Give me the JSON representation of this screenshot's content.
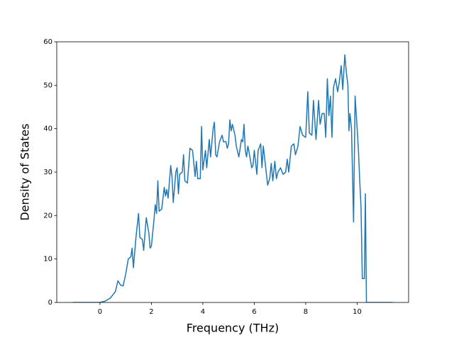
{
  "chart_data": {
    "type": "line",
    "x_label": "Frequency (THz)",
    "y_label": "Density of States",
    "xlim": [
      -1.68,
      12.0
    ],
    "ylim": [
      0,
      60
    ],
    "xticks": [
      0,
      2,
      4,
      6,
      8,
      10
    ],
    "yticks": [
      0,
      10,
      20,
      30,
      40,
      50,
      60
    ],
    "grid": false,
    "series": [
      {
        "color": "#1f77b4",
        "x": [
          -1.05,
          -0.5,
          0,
          0.2,
          0.4,
          0.6,
          0.7,
          0.8,
          0.9,
          1.0,
          1.1,
          1.2,
          1.25,
          1.3,
          1.4,
          1.5,
          1.55,
          1.65,
          1.7,
          1.8,
          1.9,
          1.95,
          2.0,
          2.1,
          2.15,
          2.2,
          2.25,
          2.3,
          2.4,
          2.5,
          2.55,
          2.6,
          2.65,
          2.75,
          2.8,
          2.85,
          2.95,
          3.0,
          3.05,
          3.1,
          3.2,
          3.25,
          3.3,
          3.4,
          3.5,
          3.6,
          3.7,
          3.75,
          3.8,
          3.9,
          3.95,
          4.0,
          4.1,
          4.15,
          4.25,
          4.3,
          4.4,
          4.45,
          4.5,
          4.55,
          4.65,
          4.75,
          4.8,
          4.9,
          4.95,
          5.0,
          5.05,
          5.1,
          5.15,
          5.25,
          5.3,
          5.4,
          5.5,
          5.55,
          5.6,
          5.65,
          5.7,
          5.75,
          5.8,
          5.9,
          5.95,
          6.0,
          6.1,
          6.15,
          6.25,
          6.3,
          6.35,
          6.52,
          6.6,
          6.66,
          6.72,
          6.8,
          6.86,
          6.92,
          7.02,
          7.12,
          7.22,
          7.28,
          7.34,
          7.44,
          7.54,
          7.6,
          7.7,
          7.78,
          7.88,
          8.0,
          8.08,
          8.14,
          8.24,
          8.3,
          8.4,
          8.5,
          8.56,
          8.64,
          8.72,
          8.78,
          8.84,
          8.9,
          8.96,
          9.02,
          9.08,
          9.16,
          9.24,
          9.3,
          9.38,
          9.44,
          9.52,
          9.58,
          9.64,
          9.68,
          9.72,
          9.78,
          9.86,
          9.92,
          10.0,
          10.05,
          10.1,
          10.15,
          10.2,
          10.28,
          10.32,
          10.36,
          11.38
        ],
        "values": [
          0,
          0,
          0,
          0.3,
          1,
          2.5,
          5,
          4,
          3.8,
          6.5,
          10,
          10.5,
          12.5,
          8,
          15,
          20.5,
          15,
          14.5,
          12,
          19.5,
          16,
          12.5,
          13,
          19,
          22.5,
          20.5,
          28,
          21,
          21.5,
          26.5,
          24.5,
          26,
          24,
          31.5,
          29,
          23,
          30,
          31,
          25,
          29.5,
          30,
          34,
          28,
          27.5,
          35.5,
          35,
          29,
          32.5,
          28.5,
          28.5,
          40.5,
          30.5,
          35,
          31,
          37.5,
          33.5,
          40,
          41.5,
          34,
          33.5,
          37,
          38.5,
          37,
          37,
          35.5,
          36.5,
          42,
          39.5,
          41,
          38.5,
          36,
          33.5,
          37.5,
          37,
          41,
          35,
          33.5,
          36,
          34.5,
          31,
          31.5,
          35,
          29.5,
          35,
          36.5,
          31,
          36,
          27,
          28.5,
          32,
          28,
          32.5,
          28.5,
          30,
          31,
          29.5,
          30,
          33,
          30,
          36,
          36.5,
          34,
          36,
          40.5,
          38.5,
          38,
          48.5,
          39,
          38.5,
          46.5,
          37.5,
          46.5,
          41,
          43.5,
          43.5,
          38,
          51.5,
          43,
          47.5,
          38,
          49.5,
          51.5,
          48.5,
          50.5,
          54.5,
          49,
          57,
          53,
          50,
          39.5,
          43.5,
          40,
          18.5,
          47.5,
          40,
          35,
          28,
          22,
          5.5,
          5.5,
          25,
          0,
          0
        ]
      }
    ]
  }
}
